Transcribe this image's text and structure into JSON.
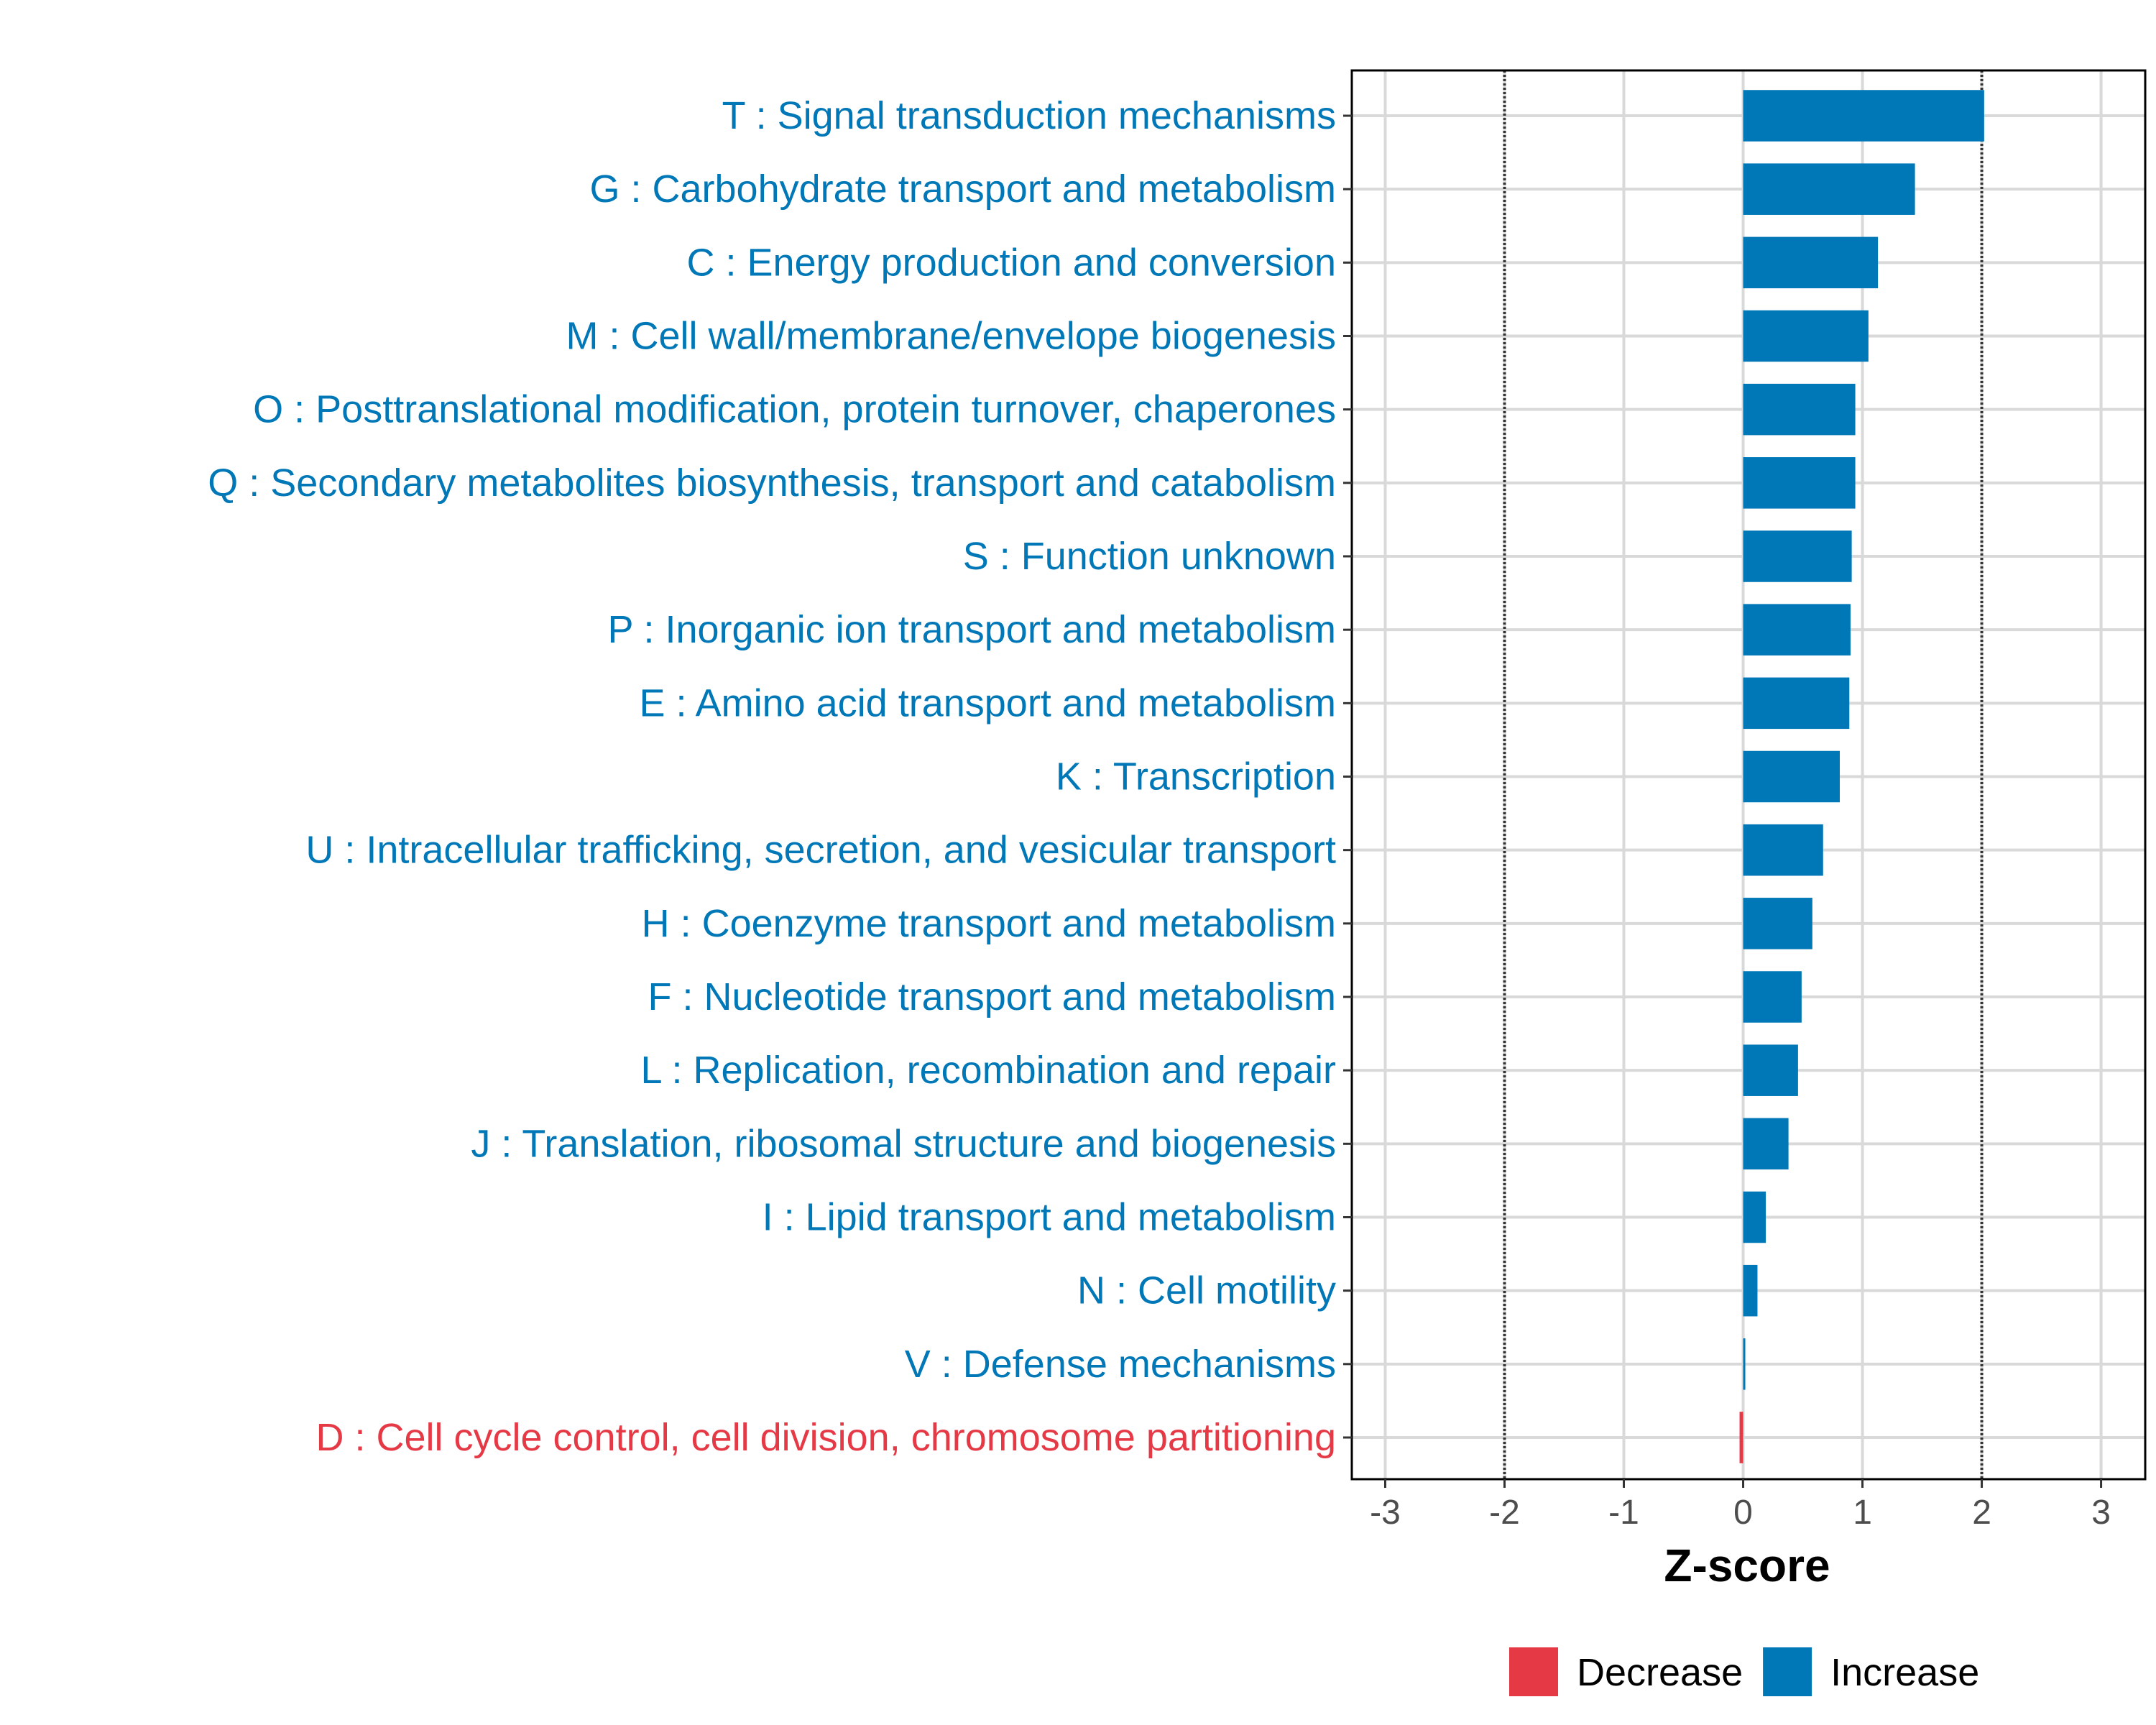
{
  "colors": {
    "increase": "#0077B6",
    "decrease": "#E63946",
    "grid": "#D9D9D9",
    "axis_text": "#4D4D4D"
  },
  "chart_data": {
    "type": "bar",
    "orientation": "horizontal",
    "title": "",
    "xlabel": "Z-score",
    "ylabel": "",
    "xlim": [
      -3.28,
      3.37
    ],
    "xticks": [
      -3,
      -2,
      -1,
      0,
      1,
      2,
      3
    ],
    "xtick_labels": [
      "-3",
      "-2",
      "-1",
      "0",
      "1",
      "2",
      "3"
    ],
    "reference_lines": [
      -2,
      2
    ],
    "grid": true,
    "legend_position": "bottom",
    "legend": [
      {
        "label": "Decrease",
        "direction": "decrease"
      },
      {
        "label": "Increase",
        "direction": "increase"
      }
    ],
    "categories": [
      "T : Signal transduction mechanisms",
      "G : Carbohydrate transport and metabolism",
      "C : Energy production and conversion",
      "M : Cell wall/membrane/envelope biogenesis",
      "O : Posttranslational modification, protein turnover, chaperones",
      "Q : Secondary metabolites biosynthesis, transport and catabolism",
      "S : Function unknown",
      "P : Inorganic ion transport and metabolism",
      "E : Amino acid transport and metabolism",
      "K : Transcription",
      "U : Intracellular trafficking, secretion, and vesicular transport",
      "H : Coenzyme transport and metabolism",
      "F : Nucleotide transport and metabolism",
      "L : Replication, recombination and repair",
      "J : Translation, ribosomal structure and biogenesis",
      "I : Lipid transport and metabolism",
      "N : Cell motility",
      "V : Defense mechanisms",
      "D : Cell cycle control, cell division, chromosome partitioning"
    ],
    "values": [
      2.02,
      1.44,
      1.13,
      1.05,
      0.94,
      0.94,
      0.91,
      0.9,
      0.89,
      0.81,
      0.67,
      0.58,
      0.49,
      0.46,
      0.38,
      0.19,
      0.12,
      0.015,
      -0.03
    ]
  }
}
